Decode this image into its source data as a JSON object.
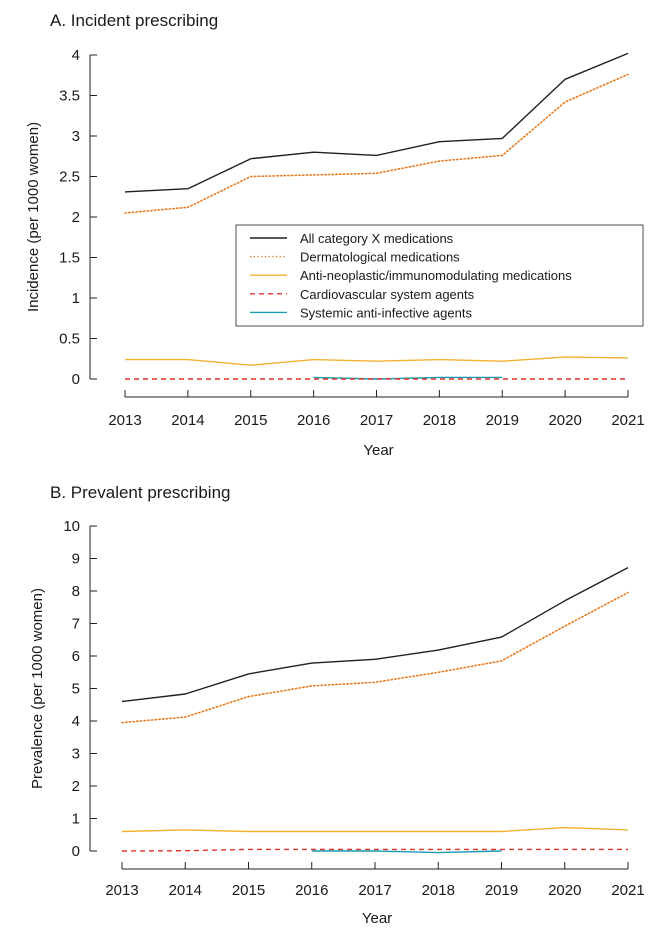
{
  "chart_data": [
    {
      "type": "line",
      "title": "A. Incident prescribing",
      "xlabel": "Year",
      "ylabel": "Incidence (per 1000 women)",
      "x": [
        2013,
        2014,
        2015,
        2016,
        2017,
        2018,
        2019,
        2020,
        2021
      ],
      "xlim": [
        2013,
        2021
      ],
      "ylim": [
        0,
        4
      ],
      "yticks": [
        "0",
        "0.5",
        "1",
        "1.5",
        "2",
        "2.5",
        "3",
        "3.5",
        "4"
      ],
      "grid": false,
      "legend": "center-right",
      "series": [
        {
          "name": "All category X medications",
          "color": "#231f20",
          "dash": "solid",
          "values": [
            2.31,
            2.35,
            2.72,
            2.8,
            2.76,
            2.93,
            2.97,
            3.7,
            4.02
          ]
        },
        {
          "name": "Dermatological medications",
          "color": "#e8791d",
          "dash": "dotted",
          "values": [
            2.05,
            2.12,
            2.5,
            2.52,
            2.54,
            2.69,
            2.76,
            3.42,
            3.76
          ]
        },
        {
          "name": "Anti-neoplastic/immunomodulating medications",
          "color": "#f2b230",
          "dash": "solid",
          "values": [
            0.24,
            0.24,
            0.17,
            0.24,
            0.22,
            0.24,
            0.22,
            0.27,
            0.26
          ]
        },
        {
          "name": "Cardiovascular system agents",
          "color": "#e0312b",
          "dash": "dashed",
          "values": [
            0.0,
            0.0,
            0.0,
            0.0,
            0.0,
            0.0,
            0.0,
            0.0,
            0.0
          ]
        },
        {
          "name": "Systemic anti-infective agents",
          "color": "#1a9bb0",
          "dash": "solid",
          "values": [
            null,
            null,
            null,
            0.02,
            0.0,
            0.02,
            0.02,
            null,
            null
          ]
        }
      ]
    },
    {
      "type": "line",
      "title": "B. Prevalent prescribing",
      "xlabel": "Year",
      "ylabel": "Prevalence (per 1000 women)",
      "x": [
        2013,
        2014,
        2015,
        2016,
        2017,
        2018,
        2019,
        2020,
        2021
      ],
      "xlim": [
        2013,
        2021
      ],
      "ylim": [
        0,
        10
      ],
      "yticks": [
        "0",
        "1",
        "2",
        "3",
        "4",
        "5",
        "6",
        "7",
        "8",
        "9",
        "10"
      ],
      "grid": false,
      "series": [
        {
          "color": "#231f20",
          "dash": "solid",
          "values": [
            4.6,
            4.83,
            5.45,
            5.78,
            5.9,
            6.18,
            6.58,
            7.7,
            8.72
          ]
        },
        {
          "color": "#e8791d",
          "dash": "dotted",
          "values": [
            3.95,
            4.12,
            4.75,
            5.08,
            5.19,
            5.5,
            5.85,
            6.92,
            7.95
          ]
        },
        {
          "color": "#f2b230",
          "dash": "solid",
          "values": [
            0.6,
            0.65,
            0.6,
            0.6,
            0.6,
            0.6,
            0.6,
            0.72,
            0.65
          ]
        },
        {
          "color": "#e0312b",
          "dash": "dashed",
          "values": [
            0.0,
            0.01,
            0.05,
            0.05,
            0.05,
            0.05,
            0.05,
            0.05,
            0.05
          ]
        },
        {
          "color": "#1a9bb0",
          "dash": "solid",
          "values": [
            null,
            null,
            null,
            0.0,
            0.0,
            -0.05,
            0.0,
            null,
            null
          ]
        }
      ]
    }
  ]
}
